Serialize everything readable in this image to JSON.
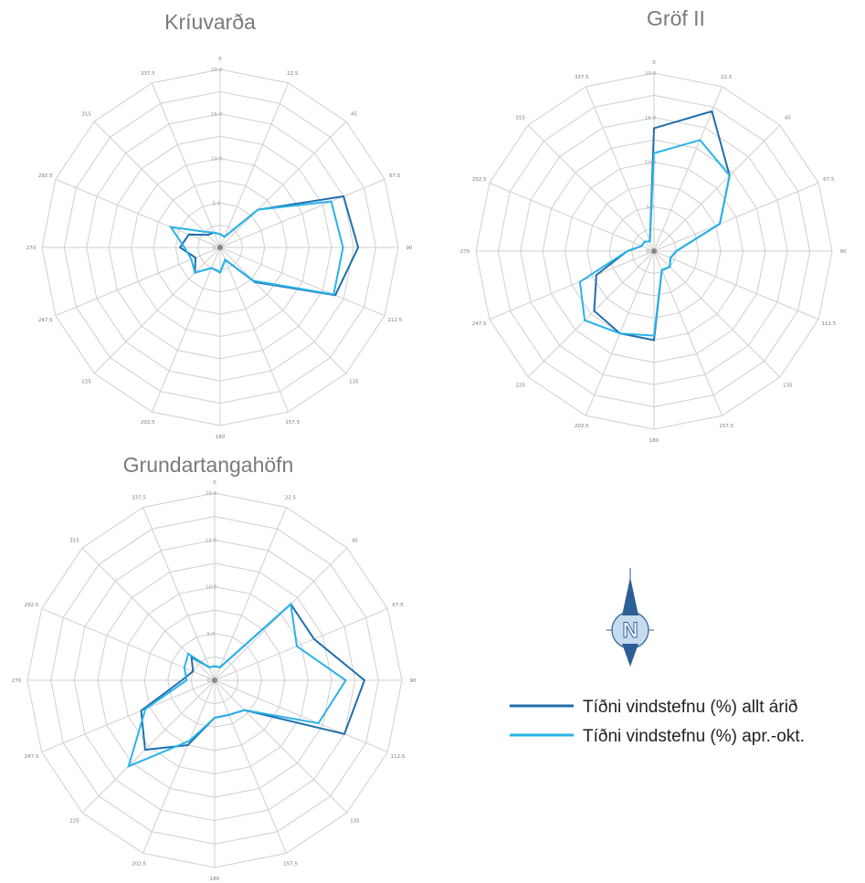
{
  "series_names": [
    "Tíðni vindstefnu (%) allt árið",
    "Tíðni vindstefnu (%) apr.-okt."
  ],
  "colors": {
    "all_year": "#1f6fad",
    "apr_oct": "#29b3e8",
    "grid": "#cfcfcf",
    "compass_blue": "#2c5f96",
    "compass_light": "#c7dbef"
  },
  "compass": {
    "letter": "N",
    "icon": "north-arrow-icon"
  },
  "chart_data": [
    {
      "type": "radar",
      "title": "Kríuvarða",
      "directions": [
        "0",
        "22.5",
        "45",
        "67.5",
        "90",
        "112.5",
        "135",
        "157.5",
        "180",
        "202.5",
        "225",
        "247.5",
        "270",
        "292.5",
        "315",
        "337.5"
      ],
      "radial_ticks": [
        "0.0",
        "5.0",
        "10.0",
        "15.0",
        "20.0"
      ],
      "rlim": [
        0,
        20
      ],
      "series": [
        {
          "name": "Tíðni vindstefnu (%) allt árið",
          "values": [
            1.5,
            1.3,
            6.0,
            15.0,
            15.5,
            14.0,
            5.5,
            1.5,
            2.8,
            2.5,
            4.0,
            3.0,
            4.5,
            3.8,
            2.0,
            1.8
          ]
        },
        {
          "name": "Tíðni vindstefnu (%) apr.-okt.",
          "values": [
            1.5,
            1.3,
            6.0,
            13.5,
            13.8,
            13.8,
            5.3,
            1.5,
            2.8,
            2.5,
            4.0,
            3.5,
            4.0,
            6.0,
            2.5,
            1.8
          ]
        }
      ]
    },
    {
      "type": "radar",
      "title": "Gröf II",
      "directions": [
        "0",
        "22.5",
        "45",
        "67.5",
        "90",
        "112.5",
        "135",
        "157.5",
        "180",
        "202.5",
        "225",
        "247.5",
        "270",
        "292.5",
        "315",
        "337.5"
      ],
      "radial_ticks": [
        "0.0",
        "5.0",
        "10.0",
        "15.0",
        "20.0"
      ],
      "rlim": [
        0,
        20
      ],
      "series": [
        {
          "name": "Tíðni vindstefnu (%) allt árið",
          "values": [
            13.8,
            17.0,
            12.0,
            8.0,
            2.5,
            2.0,
            2.5,
            2.3,
            10.0,
            10.0,
            9.5,
            7.0,
            3.0,
            1.5,
            1.5,
            1.2
          ]
        },
        {
          "name": "Tíðni vindstefnu (%) apr.-okt.",
          "values": [
            11.0,
            13.5,
            12.0,
            8.0,
            2.5,
            2.0,
            2.5,
            2.3,
            9.5,
            10.0,
            11.0,
            9.0,
            3.0,
            1.5,
            1.5,
            1.2
          ]
        }
      ]
    },
    {
      "type": "radar",
      "title": "Grundartangahöfn",
      "directions": [
        "0",
        "22.5",
        "45",
        "67.5",
        "90",
        "112.5",
        "135",
        "157.5",
        "180",
        "202.5",
        "225",
        "247.5",
        "270",
        "292.5",
        "315",
        "337.5"
      ],
      "radial_ticks": [
        "0.0",
        "5.0",
        "10.0",
        "15.0",
        "20.0"
      ],
      "rlim": [
        0,
        20
      ],
      "series": [
        {
          "name": "Tíðni vindstefnu (%) allt árið",
          "values": [
            1.5,
            1.5,
            11.5,
            11.5,
            16.0,
            15.0,
            4.5,
            4.0,
            4.0,
            7.5,
            10.5,
            8.5,
            3.5,
            2.5,
            3.5,
            1.5
          ]
        },
        {
          "name": "Tíðni vindstefnu (%) apr.-okt.",
          "values": [
            1.5,
            1.5,
            11.5,
            9.5,
            14.0,
            12.0,
            4.5,
            4.0,
            4.0,
            7.0,
            13.0,
            8.0,
            3.0,
            3.5,
            4.0,
            1.5
          ]
        }
      ]
    }
  ]
}
